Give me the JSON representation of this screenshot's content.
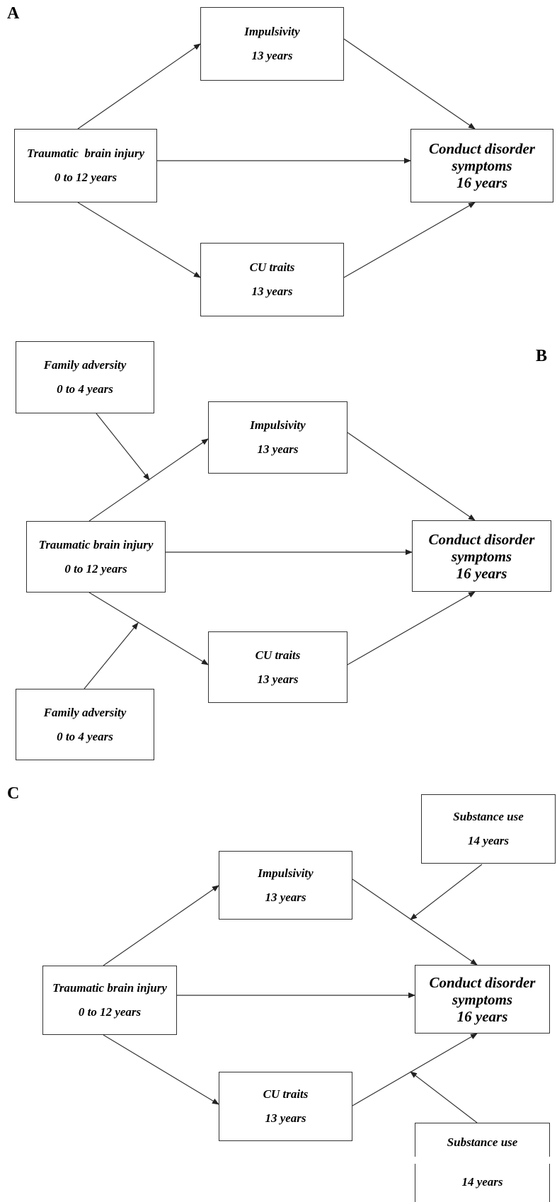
{
  "panels": {
    "a": {
      "label": "A",
      "impulsivity": {
        "title": "Impulsivity",
        "age": "13 years"
      },
      "tbi": {
        "title": "Traumatic  brain injury",
        "age": "0 to 12 years"
      },
      "cd": {
        "title": "Conduct disorder",
        "title2": "symptoms",
        "age": "16 years"
      },
      "cu": {
        "title": "CU traits",
        "age": "13 years"
      }
    },
    "b": {
      "label": "B",
      "family_top": {
        "title": "Family adversity",
        "age": "0 to 4 years"
      },
      "impulsivity": {
        "title": "Impulsivity",
        "age": "13 years"
      },
      "tbi": {
        "title": "Traumatic brain injury",
        "age": "0 to 12 years"
      },
      "cd": {
        "title": "Conduct disorder",
        "title2": "symptoms",
        "age": "16 years"
      },
      "cu": {
        "title": "CU traits",
        "age": "13 years"
      },
      "family_bottom": {
        "title": "Family adversity",
        "age": "0 to 4 years"
      }
    },
    "c": {
      "label": "C",
      "substance_top": {
        "title": "Substance use",
        "age": "14 years"
      },
      "impulsivity": {
        "title": "Impulsivity",
        "age": "13 years"
      },
      "tbi": {
        "title": "Traumatic brain injury",
        "age": "0 to 12 years"
      },
      "cd": {
        "title": "Conduct disorder",
        "title2": "symptoms",
        "age": "16 years"
      },
      "cu": {
        "title": "CU traits",
        "age": "13 years"
      },
      "substance_bottom": {
        "title": "Substance use",
        "age": "14 years"
      }
    }
  }
}
